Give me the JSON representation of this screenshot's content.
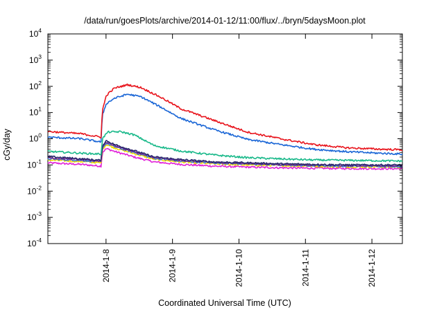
{
  "chart_data": {
    "type": "line",
    "title": "/data/run/goesPlots/archive/2014-01-12/11:00/flux/../bryn/5daysMoon.plot",
    "xlabel": "Coordinated Universal Time (UTC)",
    "ylabel": "cGy/day",
    "yscale": "log",
    "ylim": [
      0.0001,
      10000
    ],
    "y_tick_labels": [
      {
        "value": 0.0001,
        "base": "10",
        "exp": "-4"
      },
      {
        "value": 0.001,
        "base": "10",
        "exp": "-3"
      },
      {
        "value": 0.01,
        "base": "10",
        "exp": "-2"
      },
      {
        "value": 0.1,
        "base": "10",
        "exp": "-1"
      },
      {
        "value": 1,
        "base": "10",
        "exp": "0"
      },
      {
        "value": 10,
        "base": "10",
        "exp": "1"
      },
      {
        "value": 100,
        "base": "10",
        "exp": "2"
      },
      {
        "value": 1000,
        "base": "10",
        "exp": "3"
      },
      {
        "value": 10000,
        "base": "10",
        "exp": "4"
      }
    ],
    "xlim": [
      "2014-01-07 03:00",
      "2014-01-12 11:00"
    ],
    "x_tick_labels": [
      "2014-1-8",
      "2014-1-9",
      "2014-1-10",
      "2014-1-11",
      "2014-1-12"
    ],
    "x_tick_dates": [
      "2014-01-08 00:00",
      "2014-01-09 00:00",
      "2014-01-10 00:00",
      "2014-01-11 00:00",
      "2014-01-12 00:00"
    ],
    "grid": false,
    "legend": "none",
    "series": [
      {
        "color": "#e8141c",
        "values": [
          [
            0.0,
            1.9
          ],
          [
            0.5,
            1.55
          ],
          [
            0.8,
            1.15
          ],
          [
            0.8,
            1.3
          ],
          [
            0.82,
            12
          ],
          [
            0.88,
            45
          ],
          [
            1.0,
            85
          ],
          [
            1.2,
            115
          ],
          [
            1.4,
            90
          ],
          [
            1.7,
            38
          ],
          [
            2.0,
            14
          ],
          [
            2.5,
            5
          ],
          [
            3.0,
            1.8
          ],
          [
            3.5,
            1.0
          ],
          [
            4.0,
            0.6
          ],
          [
            4.5,
            0.45
          ],
          [
            5.0,
            0.4
          ],
          [
            5.333,
            0.38
          ]
        ]
      },
      {
        "color": "#1a66d6",
        "values": [
          [
            0.0,
            1.15
          ],
          [
            0.5,
            1.0
          ],
          [
            0.8,
            0.75
          ],
          [
            0.8,
            0.85
          ],
          [
            0.82,
            8
          ],
          [
            0.88,
            22
          ],
          [
            1.0,
            35
          ],
          [
            1.2,
            50
          ],
          [
            1.4,
            40
          ],
          [
            1.7,
            16
          ],
          [
            2.0,
            6
          ],
          [
            2.5,
            2.2
          ],
          [
            3.0,
            0.95
          ],
          [
            3.5,
            0.6
          ],
          [
            4.0,
            0.4
          ],
          [
            4.5,
            0.32
          ],
          [
            5.0,
            0.28
          ],
          [
            5.333,
            0.26
          ]
        ]
      },
      {
        "color": "#1ab98a",
        "values": [
          [
            0.0,
            0.33
          ],
          [
            0.5,
            0.28
          ],
          [
            0.8,
            0.26
          ],
          [
            0.82,
            1.0
          ],
          [
            0.9,
            1.8
          ],
          [
            1.1,
            1.85
          ],
          [
            1.3,
            1.4
          ],
          [
            1.6,
            0.55
          ],
          [
            2.0,
            0.34
          ],
          [
            2.5,
            0.24
          ],
          [
            3.0,
            0.19
          ],
          [
            3.5,
            0.17
          ],
          [
            4.0,
            0.155
          ],
          [
            4.5,
            0.15
          ],
          [
            5.0,
            0.145
          ],
          [
            5.333,
            0.14
          ]
        ]
      },
      {
        "color": "#2a2a6e",
        "values": [
          [
            0.0,
            0.21
          ],
          [
            0.5,
            0.17
          ],
          [
            0.8,
            0.15
          ],
          [
            0.82,
            0.55
          ],
          [
            0.88,
            0.85
          ],
          [
            1.0,
            0.6
          ],
          [
            1.3,
            0.35
          ],
          [
            1.6,
            0.2
          ],
          [
            2.0,
            0.16
          ],
          [
            2.5,
            0.13
          ],
          [
            3.0,
            0.12
          ],
          [
            3.5,
            0.11
          ],
          [
            4.0,
            0.105
          ],
          [
            4.5,
            0.1
          ],
          [
            5.0,
            0.1
          ],
          [
            5.333,
            0.1
          ]
        ]
      },
      {
        "color": "#7a2d8f",
        "values": [
          [
            0.0,
            0.19
          ],
          [
            0.5,
            0.16
          ],
          [
            0.8,
            0.14
          ],
          [
            0.82,
            0.5
          ],
          [
            0.88,
            0.75
          ],
          [
            1.0,
            0.55
          ],
          [
            1.3,
            0.32
          ],
          [
            1.6,
            0.19
          ],
          [
            2.0,
            0.15
          ],
          [
            2.5,
            0.125
          ],
          [
            3.0,
            0.115
          ],
          [
            3.5,
            0.105
          ],
          [
            4.0,
            0.1
          ],
          [
            4.5,
            0.095
          ],
          [
            5.0,
            0.095
          ],
          [
            5.333,
            0.093
          ]
        ]
      },
      {
        "color": "#3a74d0",
        "values": [
          [
            0.0,
            0.17
          ],
          [
            0.5,
            0.15
          ],
          [
            0.8,
            0.13
          ],
          [
            0.82,
            0.45
          ],
          [
            0.88,
            0.68
          ],
          [
            1.0,
            0.5
          ],
          [
            1.3,
            0.3
          ],
          [
            1.6,
            0.18
          ],
          [
            2.0,
            0.14
          ],
          [
            2.5,
            0.12
          ],
          [
            3.0,
            0.11
          ],
          [
            3.5,
            0.1
          ],
          [
            4.0,
            0.095
          ],
          [
            4.5,
            0.09
          ],
          [
            5.0,
            0.09
          ],
          [
            5.333,
            0.088
          ]
        ]
      },
      {
        "color": "#f2dc00",
        "values": [
          [
            0.0,
            0.155
          ],
          [
            0.5,
            0.135
          ],
          [
            0.8,
            0.12
          ],
          [
            0.82,
            0.4
          ],
          [
            0.88,
            0.6
          ],
          [
            1.0,
            0.45
          ],
          [
            1.3,
            0.27
          ],
          [
            1.6,
            0.165
          ],
          [
            2.0,
            0.13
          ],
          [
            2.5,
            0.11
          ],
          [
            3.0,
            0.1
          ],
          [
            3.5,
            0.095
          ],
          [
            4.0,
            0.09
          ],
          [
            4.5,
            0.085
          ],
          [
            5.0,
            0.085
          ],
          [
            5.333,
            0.083
          ]
        ]
      },
      {
        "color": "#e020d8",
        "values": [
          [
            0.0,
            0.12
          ],
          [
            0.5,
            0.105
          ],
          [
            0.8,
            0.09
          ],
          [
            0.82,
            0.3
          ],
          [
            0.88,
            0.42
          ],
          [
            1.0,
            0.33
          ],
          [
            1.3,
            0.2
          ],
          [
            1.6,
            0.13
          ],
          [
            2.0,
            0.105
          ],
          [
            2.5,
            0.09
          ],
          [
            3.0,
            0.083
          ],
          [
            3.5,
            0.078
          ],
          [
            4.0,
            0.075
          ],
          [
            4.5,
            0.073
          ],
          [
            5.0,
            0.072
          ],
          [
            5.333,
            0.072
          ]
        ]
      }
    ]
  }
}
